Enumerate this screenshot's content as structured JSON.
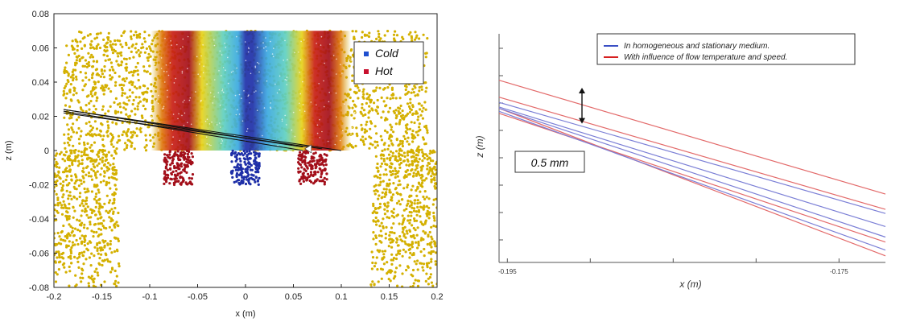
{
  "chart_data": [
    {
      "type": "scatter",
      "xlabel": "x (m)",
      "ylabel": "z (m)",
      "xlim": [
        -0.2,
        0.2
      ],
      "ylim": [
        -0.08,
        0.08
      ],
      "x_ticks": [
        "-0.2",
        "-0.15",
        "-0.1",
        "-0.05",
        "0",
        "0.05",
        "0.1",
        "0.15",
        "0.2"
      ],
      "y_ticks": [
        "0.08",
        "0.06",
        "0.04",
        "0.02",
        "0",
        "-0.02",
        "-0.04",
        "-0.06",
        "-0.08"
      ],
      "legend": {
        "placement": "top-right",
        "entries": [
          {
            "label": "Cold",
            "color": "#1f4fcf"
          },
          {
            "label": "Hot",
            "color": "#c8102e"
          }
        ]
      },
      "colors": {
        "background_points": "#d4b000",
        "cold": "#1e2fa8",
        "hot": "#a30f1a"
      },
      "regions": [
        {
          "kind": "ambient-block",
          "x": [
            -0.19,
            0.19
          ],
          "z": [
            0.0,
            0.07
          ]
        },
        {
          "kind": "hot-jet",
          "x": [
            -0.085,
            -0.055
          ],
          "z": [
            -0.02,
            0.0
          ]
        },
        {
          "kind": "cold-jet",
          "x": [
            -0.015,
            0.015
          ],
          "z": [
            -0.02,
            0.0
          ]
        },
        {
          "kind": "hot-jet",
          "x": [
            0.055,
            0.085
          ],
          "z": [
            -0.02,
            0.0
          ]
        }
      ],
      "rays": [
        {
          "from": [
            -0.19,
            0.024
          ],
          "to": [
            0.06,
            0.002
          ]
        },
        {
          "from": [
            -0.19,
            0.023
          ],
          "to": [
            0.06,
            0.0
          ]
        },
        {
          "from": [
            -0.19,
            0.024
          ],
          "to": [
            0.1,
            0.0
          ]
        },
        {
          "from": [
            -0.19,
            0.022
          ],
          "to": [
            0.08,
            0.001
          ]
        }
      ]
    },
    {
      "type": "line",
      "xlabel": "x (m)",
      "ylabel": "z (m)",
      "xlim": [
        -0.1955,
        -0.1722
      ],
      "ylim": [
        0,
        1
      ],
      "x_ticks": [
        {
          "value": -0.195,
          "label": "-0.195"
        },
        {
          "value": -0.175,
          "label": "-0.175"
        }
      ],
      "legend": {
        "placement": "top-right",
        "entries": [
          {
            "label": "In homogeneous and stationary medium.",
            "color": "#3a4fc4"
          },
          {
            "label": "With influence of flow temperature and speed.",
            "color": "#d62020"
          }
        ]
      },
      "annotation": {
        "text": "0.5 mm",
        "x": -0.1905,
        "y": [
          0.764,
          0.607
        ]
      },
      "series": [
        {
          "group": "red",
          "x": [
            -0.1955,
            -0.1722
          ],
          "y": [
            0.797,
            0.299
          ]
        },
        {
          "group": "red",
          "x": [
            -0.1955,
            -0.1722
          ],
          "y": [
            0.723,
            0.232
          ]
        },
        {
          "group": "red",
          "x": [
            -0.1955,
            -0.1722
          ],
          "y": [
            0.674,
            0.029
          ]
        },
        {
          "group": "red",
          "x": [
            -0.1955,
            -0.1722
          ],
          "y": [
            0.652,
            0.089
          ]
        },
        {
          "group": "blue",
          "x": [
            -0.1955,
            -0.1722
          ],
          "y": [
            0.7,
            0.214
          ]
        },
        {
          "group": "blue",
          "x": [
            -0.1955,
            -0.1722
          ],
          "y": [
            0.68,
            0.157
          ]
        },
        {
          "group": "blue",
          "x": [
            -0.1955,
            -0.1722
          ],
          "y": [
            0.674,
            0.111
          ]
        },
        {
          "group": "blue",
          "x": [
            -0.1955,
            -0.1722
          ],
          "y": [
            0.661,
            0.054
          ]
        }
      ],
      "colors": {
        "red": "#e36a6a",
        "blue": "#7b7fd6"
      }
    }
  ]
}
